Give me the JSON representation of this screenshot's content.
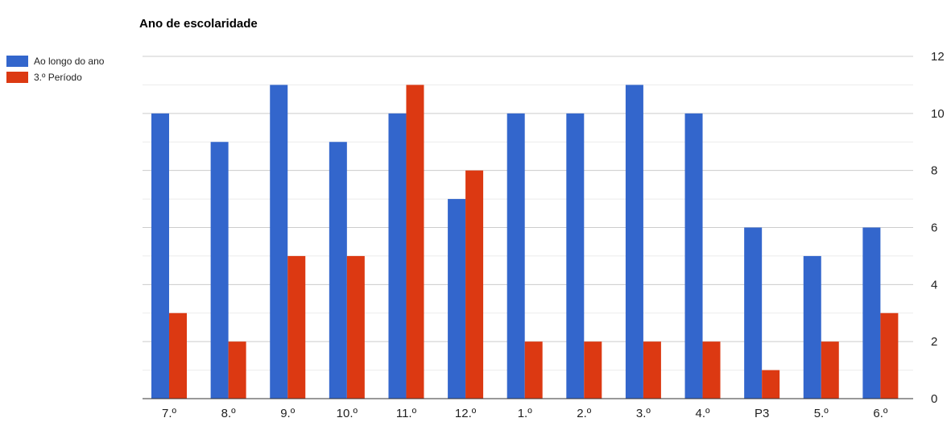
{
  "chart_data": {
    "type": "bar",
    "title": "Ano de escolaridade",
    "xlabel": "",
    "ylabel": "",
    "categories": [
      "7.º",
      "8.º",
      "9.º",
      "10.º",
      "11.º",
      "12.º",
      "1.º",
      "2.º",
      "3.º",
      "4.º",
      "P3",
      "5.º",
      "6.º"
    ],
    "series": [
      {
        "name": "Ao longo do ano",
        "color": "#3366cc",
        "values": [
          10,
          9,
          11,
          9,
          10,
          7,
          10,
          10,
          11,
          10,
          6,
          5,
          6
        ]
      },
      {
        "name": "3.º Período",
        "color": "#dc3912",
        "values": [
          3,
          2,
          5,
          5,
          11,
          8,
          2,
          2,
          2,
          2,
          1,
          2,
          3
        ]
      }
    ],
    "ylim": [
      0,
      12
    ],
    "yticks": [
      "0",
      "2",
      "4",
      "6",
      "8",
      "10",
      "12"
    ],
    "y_axis_side": "right",
    "legend_position": "top-left",
    "grid": true
  }
}
